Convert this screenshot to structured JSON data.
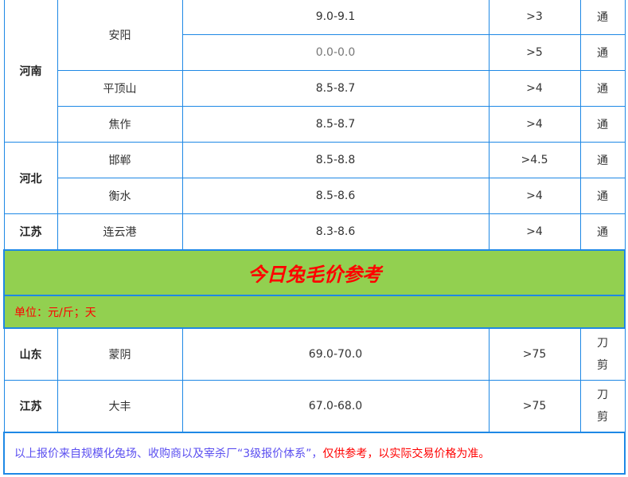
{
  "top_rows": [
    {
      "province": "河南",
      "city": "安阳",
      "price": "9.0-9.1",
      "weight": ">3",
      "status": "通"
    },
    {
      "price": "0.0-0.0",
      "weight": ">5",
      "status": "通"
    },
    {
      "city": "平顶山",
      "price": "8.5-8.7",
      "weight": ">4",
      "status": "通"
    },
    {
      "city": "焦作",
      "price": "8.5-8.7",
      "weight": ">4",
      "status": "通"
    },
    {
      "province": "河北",
      "city": "邯郸",
      "price": "8.5-8.8",
      "weight": ">4.5",
      "status": "通"
    },
    {
      "city": "衡水",
      "price": "8.5-8.6",
      "weight": ">4",
      "status": "通"
    },
    {
      "province": "江苏",
      "city": "连云港",
      "price": "8.3-8.6",
      "weight": ">4",
      "status": "通"
    }
  ],
  "section_title": "今日兔毛价参考",
  "unit": "单位：元/斤；天",
  "wool_rows": [
    {
      "province": "山东",
      "city": "蒙阴",
      "price": "69.0-70.0",
      "days": ">75",
      "method": "刀剪"
    },
    {
      "province": "江苏",
      "city": "大丰",
      "price": "67.0-68.0",
      "days": ">75",
      "method": "刀剪"
    }
  ],
  "footer": {
    "source": "以上报价来自规模化兔场、收购商以及宰杀厂“3级报价体系”，",
    "disclaimer": "仅供参考，以实际交易价格为准。"
  },
  "colors": {
    "border": "#1e88e5",
    "header_bg": "#92d050",
    "accent": "#ff0000"
  }
}
